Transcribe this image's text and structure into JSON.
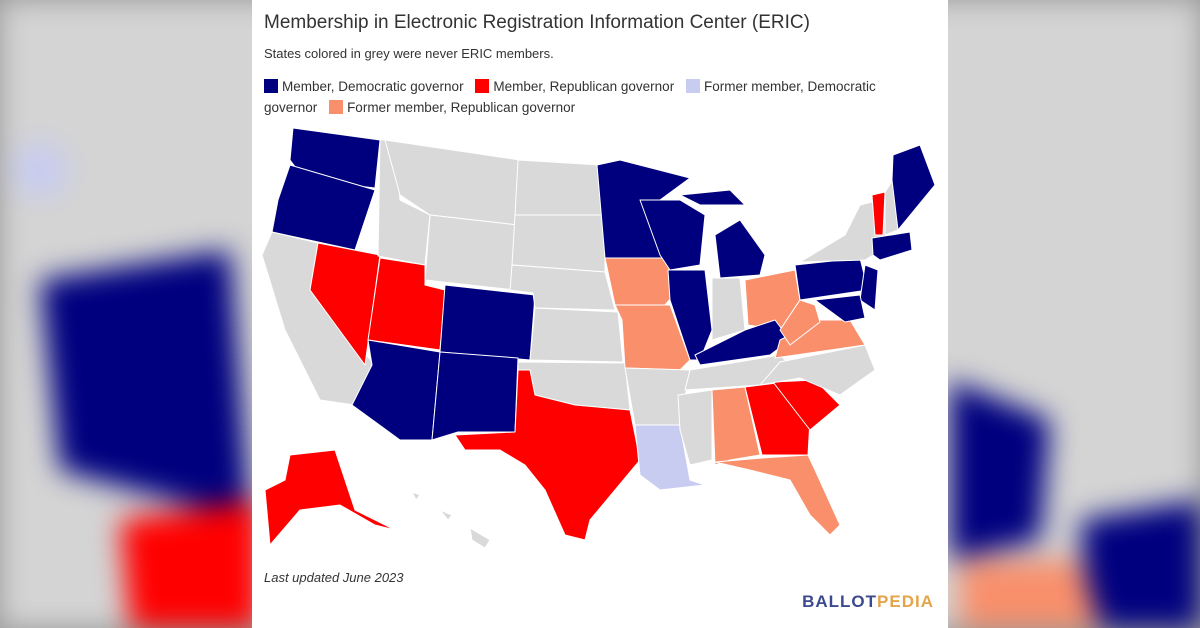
{
  "header": {
    "title": "Membership in Electronic Registration Information Center (ERIC)",
    "subtitle": "States colored in grey were never ERIC members."
  },
  "legend": [
    {
      "label": "Member, Democratic governor",
      "color": "#00007f"
    },
    {
      "label": "Member, Republican governor",
      "color": "#ff0000"
    },
    {
      "label": "Former member, Democratic governor",
      "color": "#c8ccf0"
    },
    {
      "label": "Former member, Republican governor",
      "color": "#f98f6b"
    }
  ],
  "never_member_color": "#d9d9d9",
  "footnote": "Last updated June 2023",
  "brand": {
    "part1": "BALLOT",
    "part2": "PEDIA"
  }
}
